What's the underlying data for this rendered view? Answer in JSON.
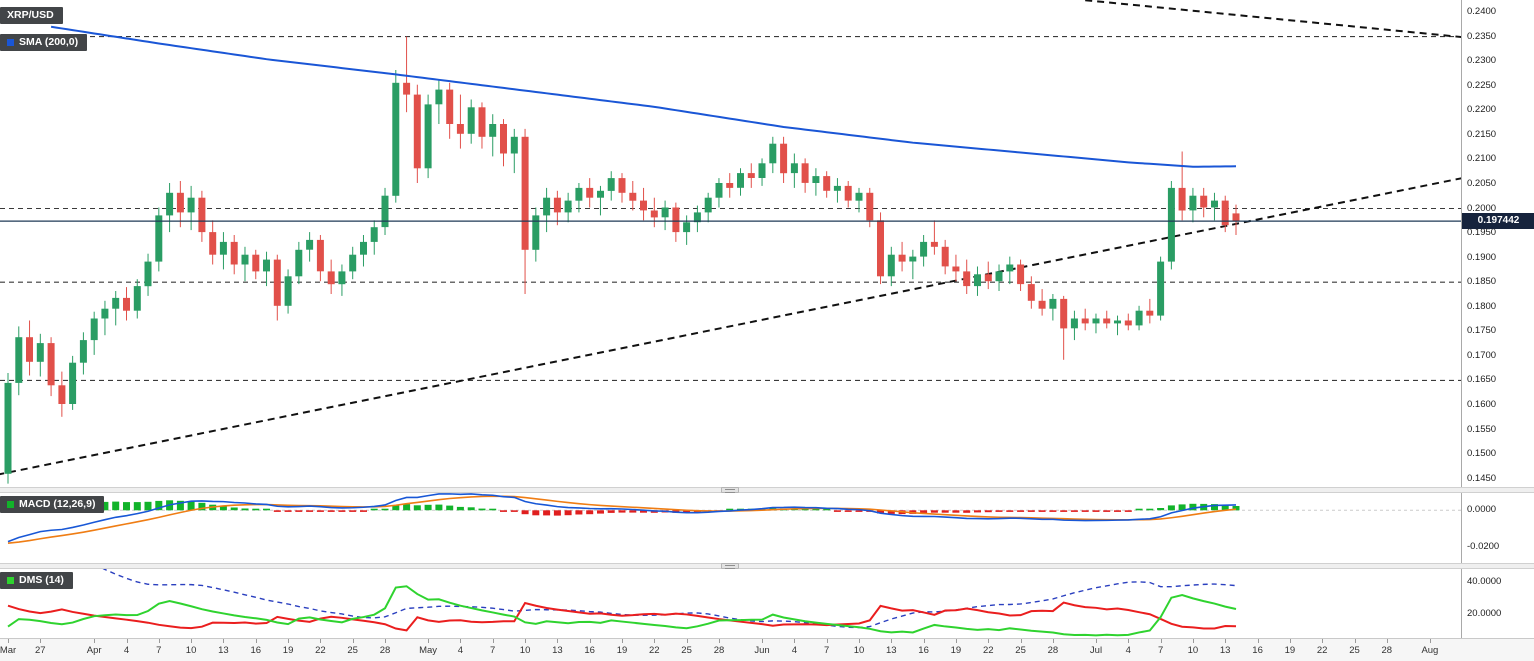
{
  "app": {
    "title": "XRP/USD"
  },
  "labels": {
    "symbol": "XRP/USD",
    "sma": "SMA (200,0)",
    "macd": "MACD (12,26,9)",
    "dms": "DMS (14)",
    "current_price": "0.197442"
  },
  "colors": {
    "up": "#2a9d64",
    "down": "#e1504a",
    "sma": "#1a56d6",
    "macd_line": "#1857d6",
    "macd_signal": "#ef7d14",
    "hist_up": "#12b32a",
    "hist_down": "#e01f1f",
    "di_plus": "#2fd32f",
    "di_minus": "#ea1e1e",
    "adx": "#2a3fbf",
    "level": "#3a3a3a",
    "trend": "#111111",
    "price_line": "#1f3a57",
    "badge_bg": "#424548",
    "tag_bg": "#16233c"
  },
  "chart_data": [
    {
      "type": "candlestick",
      "title": "XRP/USD",
      "timeframe": "daily",
      "ylim": [
        0.1433,
        0.24245
      ],
      "y_ticks": [
        0.24,
        0.235,
        0.23,
        0.225,
        0.22,
        0.215,
        0.21,
        0.205,
        0.2,
        0.195,
        0.19,
        0.185,
        0.18,
        0.175,
        0.17,
        0.165,
        0.16,
        0.155,
        0.15,
        0.145
      ],
      "x_ticks": [
        {
          "d": 0,
          "label": "Mar"
        },
        {
          "d": 3,
          "label": "27"
        },
        {
          "d": 8,
          "label": "Apr"
        },
        {
          "d": 11,
          "label": "4"
        },
        {
          "d": 14,
          "label": "7"
        },
        {
          "d": 17,
          "label": "10"
        },
        {
          "d": 20,
          "label": "13"
        },
        {
          "d": 23,
          "label": "16"
        },
        {
          "d": 26,
          "label": "19"
        },
        {
          "d": 29,
          "label": "22"
        },
        {
          "d": 32,
          "label": "25"
        },
        {
          "d": 35,
          "label": "28"
        },
        {
          "d": 39,
          "label": "May"
        },
        {
          "d": 42,
          "label": "4"
        },
        {
          "d": 45,
          "label": "7"
        },
        {
          "d": 48,
          "label": "10"
        },
        {
          "d": 51,
          "label": "13"
        },
        {
          "d": 54,
          "label": "16"
        },
        {
          "d": 57,
          "label": "19"
        },
        {
          "d": 60,
          "label": "22"
        },
        {
          "d": 63,
          "label": "25"
        },
        {
          "d": 66,
          "label": "28"
        },
        {
          "d": 70,
          "label": "Jun"
        },
        {
          "d": 73,
          "label": "4"
        },
        {
          "d": 76,
          "label": "7"
        },
        {
          "d": 79,
          "label": "10"
        },
        {
          "d": 82,
          "label": "13"
        },
        {
          "d": 85,
          "label": "16"
        },
        {
          "d": 88,
          "label": "19"
        },
        {
          "d": 91,
          "label": "22"
        },
        {
          "d": 94,
          "label": "25"
        },
        {
          "d": 97,
          "label": "28"
        },
        {
          "d": 101,
          "label": "Jul"
        },
        {
          "d": 104,
          "label": "4"
        },
        {
          "d": 107,
          "label": "7"
        },
        {
          "d": 110,
          "label": "10"
        },
        {
          "d": 113,
          "label": "13"
        },
        {
          "d": 116,
          "label": "16"
        },
        {
          "d": 119,
          "label": "19"
        },
        {
          "d": 122,
          "label": "22"
        },
        {
          "d": 125,
          "label": "25"
        },
        {
          "d": 128,
          "label": "28"
        },
        {
          "d": 132,
          "label": "Aug"
        }
      ],
      "levels": [
        0.235,
        0.2,
        0.185,
        0.165
      ],
      "current_price": 0.197442,
      "sma200_points": [
        [
          4,
          0.237
        ],
        [
          14,
          0.2336
        ],
        [
          24,
          0.2304
        ],
        [
          36,
          0.2273
        ],
        [
          48,
          0.224
        ],
        [
          60,
          0.2207
        ],
        [
          72,
          0.2166
        ],
        [
          84,
          0.2134
        ],
        [
          96,
          0.211
        ],
        [
          104,
          0.2094
        ],
        [
          110,
          0.2085
        ],
        [
          114,
          0.2086
        ]
      ],
      "trendlines": {
        "ascending": [
          [
            -1,
            0.1458
          ],
          [
            135,
            0.2062
          ]
        ],
        "descending": [
          [
            100,
            0.2424
          ],
          [
            135,
            0.2349
          ]
        ]
      },
      "candles_ohlc": [
        [
          0.146,
          0.1665,
          0.144,
          0.1645
        ],
        [
          0.1645,
          0.176,
          0.162,
          0.1738
        ],
        [
          0.1738,
          0.1772,
          0.166,
          0.1688
        ],
        [
          0.1688,
          0.1745,
          0.1658,
          0.1726
        ],
        [
          0.1726,
          0.1738,
          0.1618,
          0.164
        ],
        [
          0.164,
          0.1668,
          0.1576,
          0.1602
        ],
        [
          0.1602,
          0.17,
          0.159,
          0.1686
        ],
        [
          0.1686,
          0.1748,
          0.1662,
          0.1732
        ],
        [
          0.1732,
          0.179,
          0.1702,
          0.1776
        ],
        [
          0.1776,
          0.1812,
          0.1742,
          0.1796
        ],
        [
          0.1796,
          0.1832,
          0.1762,
          0.1818
        ],
        [
          0.1818,
          0.184,
          0.1772,
          0.1792
        ],
        [
          0.1792,
          0.1856,
          0.1776,
          0.1842
        ],
        [
          0.1842,
          0.1908,
          0.1822,
          0.1892
        ],
        [
          0.1892,
          0.2002,
          0.1872,
          0.1986
        ],
        [
          0.1986,
          0.2052,
          0.1952,
          0.2032
        ],
        [
          0.2032,
          0.2056,
          0.1962,
          0.1992
        ],
        [
          0.1992,
          0.2046,
          0.1956,
          0.2022
        ],
        [
          0.2022,
          0.2036,
          0.1932,
          0.1952
        ],
        [
          0.1952,
          0.1976,
          0.1886,
          0.1906
        ],
        [
          0.1906,
          0.1952,
          0.1876,
          0.1932
        ],
        [
          0.1932,
          0.1946,
          0.1866,
          0.1886
        ],
        [
          0.1886,
          0.1922,
          0.1852,
          0.1906
        ],
        [
          0.1906,
          0.1916,
          0.1856,
          0.1872
        ],
        [
          0.1872,
          0.1912,
          0.1842,
          0.1896
        ],
        [
          0.1896,
          0.1906,
          0.1772,
          0.1802
        ],
        [
          0.1802,
          0.1876,
          0.1786,
          0.1862
        ],
        [
          0.1862,
          0.1932,
          0.1846,
          0.1916
        ],
        [
          0.1916,
          0.1952,
          0.1892,
          0.1936
        ],
        [
          0.1936,
          0.1946,
          0.1852,
          0.1872
        ],
        [
          0.1872,
          0.1896,
          0.1826,
          0.1846
        ],
        [
          0.1846,
          0.1886,
          0.1822,
          0.1872
        ],
        [
          0.1872,
          0.1922,
          0.1856,
          0.1906
        ],
        [
          0.1906,
          0.1946,
          0.1882,
          0.1932
        ],
        [
          0.1932,
          0.1976,
          0.1906,
          0.1962
        ],
        [
          0.1962,
          0.2042,
          0.1946,
          0.2026
        ],
        [
          0.2026,
          0.2282,
          0.2012,
          0.2256
        ],
        [
          0.2256,
          0.235,
          0.2196,
          0.2232
        ],
        [
          0.2232,
          0.2252,
          0.2052,
          0.2082
        ],
        [
          0.2082,
          0.2232,
          0.2062,
          0.2212
        ],
        [
          0.2212,
          0.2262,
          0.2172,
          0.2242
        ],
        [
          0.2242,
          0.2256,
          0.2142,
          0.2172
        ],
        [
          0.2172,
          0.2232,
          0.2122,
          0.2152
        ],
        [
          0.2152,
          0.2222,
          0.2132,
          0.2206
        ],
        [
          0.2206,
          0.2216,
          0.2122,
          0.2146
        ],
        [
          0.2146,
          0.2192,
          0.2106,
          0.2172
        ],
        [
          0.2172,
          0.2182,
          0.2086,
          0.2112
        ],
        [
          0.2112,
          0.2162,
          0.2072,
          0.2146
        ],
        [
          0.2146,
          0.2162,
          0.1826,
          0.1916
        ],
        [
          0.1916,
          0.2002,
          0.1892,
          0.1986
        ],
        [
          0.1986,
          0.2042,
          0.1952,
          0.2022
        ],
        [
          0.2022,
          0.2036,
          0.1966,
          0.1992
        ],
        [
          0.1992,
          0.2032,
          0.1972,
          0.2016
        ],
        [
          0.2016,
          0.2052,
          0.1992,
          0.2042
        ],
        [
          0.2042,
          0.2062,
          0.2002,
          0.2022
        ],
        [
          0.2022,
          0.2046,
          0.1986,
          0.2036
        ],
        [
          0.2036,
          0.2076,
          0.2016,
          0.2062
        ],
        [
          0.2062,
          0.2072,
          0.2012,
          0.2032
        ],
        [
          0.2032,
          0.2056,
          0.1996,
          0.2016
        ],
        [
          0.2016,
          0.2042,
          0.1976,
          0.1996
        ],
        [
          0.1996,
          0.2022,
          0.1962,
          0.1982
        ],
        [
          0.1982,
          0.2016,
          0.1956,
          0.2002
        ],
        [
          0.2002,
          0.2012,
          0.1932,
          0.1952
        ],
        [
          0.1952,
          0.1986,
          0.1926,
          0.1972
        ],
        [
          0.1972,
          0.2006,
          0.1952,
          0.1992
        ],
        [
          0.1992,
          0.2032,
          0.1972,
          0.2022
        ],
        [
          0.2022,
          0.2062,
          0.2002,
          0.2052
        ],
        [
          0.2052,
          0.2072,
          0.2022,
          0.2042
        ],
        [
          0.2042,
          0.2082,
          0.2026,
          0.2072
        ],
        [
          0.2072,
          0.2092,
          0.2042,
          0.2062
        ],
        [
          0.2062,
          0.2102,
          0.2046,
          0.2092
        ],
        [
          0.2092,
          0.2146,
          0.2072,
          0.2132
        ],
        [
          0.2132,
          0.2146,
          0.2052,
          0.2072
        ],
        [
          0.2072,
          0.2112,
          0.2042,
          0.2092
        ],
        [
          0.2092,
          0.2102,
          0.2032,
          0.2052
        ],
        [
          0.2052,
          0.2082,
          0.2026,
          0.2066
        ],
        [
          0.2066,
          0.2076,
          0.2022,
          0.2036
        ],
        [
          0.2036,
          0.2062,
          0.2012,
          0.2046
        ],
        [
          0.2046,
          0.2056,
          0.2002,
          0.2016
        ],
        [
          0.2016,
          0.2042,
          0.1992,
          0.2032
        ],
        [
          0.2032,
          0.2042,
          0.1962,
          0.1976
        ],
        [
          0.1976,
          0.1992,
          0.1846,
          0.1862
        ],
        [
          0.1862,
          0.1922,
          0.1842,
          0.1906
        ],
        [
          0.1906,
          0.1932,
          0.1872,
          0.1892
        ],
        [
          0.1892,
          0.1916,
          0.1856,
          0.1902
        ],
        [
          0.1902,
          0.1946,
          0.1882,
          0.1932
        ],
        [
          0.1932,
          0.1976,
          0.1906,
          0.1922
        ],
        [
          0.1922,
          0.1936,
          0.1866,
          0.1882
        ],
        [
          0.1882,
          0.1906,
          0.1852,
          0.1872
        ],
        [
          0.1872,
          0.1896,
          0.1826,
          0.1842
        ],
        [
          0.1842,
          0.1882,
          0.1822,
          0.1866
        ],
        [
          0.1866,
          0.1892,
          0.1836,
          0.1852
        ],
        [
          0.1852,
          0.1886,
          0.1832,
          0.1872
        ],
        [
          0.1872,
          0.1902,
          0.1846,
          0.1886
        ],
        [
          0.1886,
          0.1896,
          0.1832,
          0.1846
        ],
        [
          0.1846,
          0.1862,
          0.1796,
          0.1812
        ],
        [
          0.1812,
          0.1836,
          0.1782,
          0.1796
        ],
        [
          0.1796,
          0.1826,
          0.1772,
          0.1816
        ],
        [
          0.1816,
          0.1822,
          0.1692,
          0.1756
        ],
        [
          0.1756,
          0.1792,
          0.1732,
          0.1776
        ],
        [
          0.1776,
          0.1796,
          0.1752,
          0.1766
        ],
        [
          0.1766,
          0.1786,
          0.1746,
          0.1776
        ],
        [
          0.1776,
          0.1792,
          0.1756,
          0.1766
        ],
        [
          0.1766,
          0.1782,
          0.1742,
          0.1772
        ],
        [
          0.1772,
          0.1786,
          0.1752,
          0.1762
        ],
        [
          0.1762,
          0.1802,
          0.1752,
          0.1792
        ],
        [
          0.1792,
          0.1816,
          0.1766,
          0.1782
        ],
        [
          0.1782,
          0.1902,
          0.1772,
          0.1892
        ],
        [
          0.1892,
          0.2056,
          0.1876,
          0.2042
        ],
        [
          0.2042,
          0.2116,
          0.1976,
          0.1996
        ],
        [
          0.1996,
          0.2042,
          0.1972,
          0.2026
        ],
        [
          0.2026,
          0.2042,
          0.1982,
          0.2002
        ],
        [
          0.2002,
          0.2032,
          0.1976,
          0.2016
        ],
        [
          0.2016,
          0.2026,
          0.1952,
          0.1966
        ],
        [
          0.199,
          0.2008,
          0.1946,
          0.1974
        ]
      ],
      "indicator_warmup_closes": [
        0.234,
        0.2325,
        0.231,
        0.233,
        0.23,
        0.2272,
        0.2286,
        0.2242,
        0.2212,
        0.2232,
        0.2192,
        0.2152,
        0.2162,
        0.2102,
        0.2052,
        0.2072,
        0.2002,
        0.1902,
        0.1752,
        0.1502,
        0.1422,
        0.1482,
        0.1552,
        0.1512,
        0.1562,
        0.1602,
        0.1572,
        0.1542,
        0.1502,
        0.1472
      ]
    },
    {
      "type": "macd",
      "label": "MACD (12,26,9)",
      "params": [
        12,
        26,
        9
      ],
      "y_ticks": [
        0.0,
        -0.02
      ],
      "ylim": [
        -0.029,
        0.0095
      ],
      "derived_from": "candles_ohlc"
    },
    {
      "type": "dms",
      "label": "DMS (14)",
      "period": 14,
      "series": [
        "+DI",
        "-DI",
        "ADX"
      ],
      "y_ticks": [
        40.0,
        20.0
      ],
      "ylim": [
        5,
        48
      ],
      "derived_from": "candles_ohlc"
    }
  ]
}
